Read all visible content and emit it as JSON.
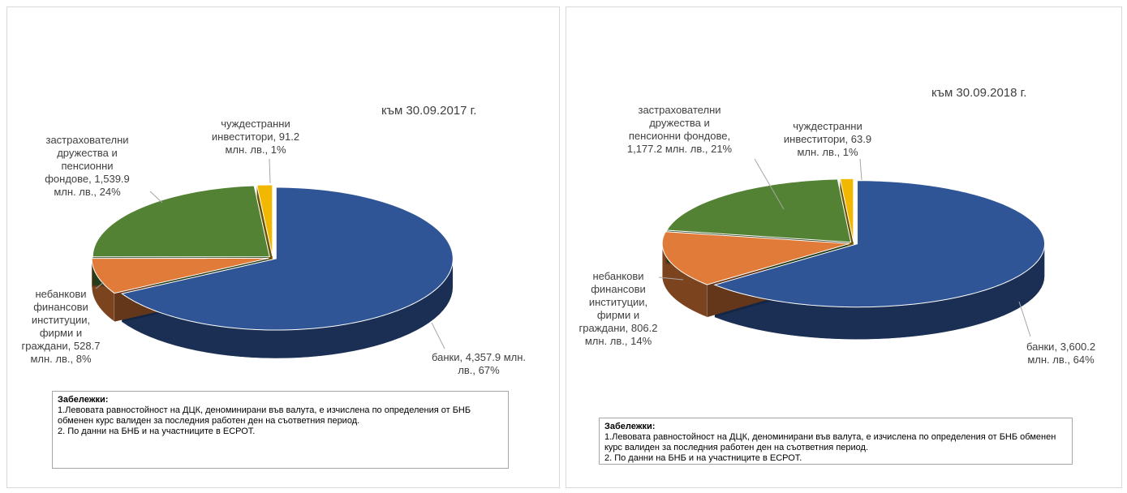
{
  "chart_data": [
    {
      "type": "pie",
      "title": "към 30.09.2017 г.",
      "categories": [
        "банки,",
        "небанкови финансови институции, фирми и граждани,",
        "застрахователни дружества и пенсионни фондове,",
        "чуждестранни инвеститори,"
      ],
      "values": [
        4357.9,
        528.7,
        1539.9,
        91.2
      ],
      "value_labels": [
        "4,357.9 млн. лв., 67%",
        "528.7 млн. лв., 8%",
        "1,539.9 млн. лв., 24%",
        "91.2 млн. лв., 1%"
      ],
      "colors": [
        "#2f5597",
        "#e07b39",
        "#548235",
        "#f2b800"
      ],
      "notes": {
        "title": "Забележки:",
        "lines": [
          "1.Левовата равностойност на ДЦК, деноминирани във валута, е изчислена по определения от БНБ обменен курс валиден за последния работен ден на съответния период.",
          "2. По данни на БНБ и на участниците в ЕСРОТ."
        ]
      }
    },
    {
      "type": "pie",
      "title": "към 30.09.2018 г.",
      "categories": [
        "банки,",
        "небанкови финансови институции, фирми и граждани,",
        "застрахователни дружества и пенсионни фондове,",
        "чуждестранни инвеститори,"
      ],
      "values": [
        3600.2,
        806.2,
        1177.2,
        63.9
      ],
      "value_labels": [
        "3,600.2 млн. лв., 64%",
        "806.2 млн. лв., 14%",
        "1,177.2 млн. лв., 21%",
        "63.9 млн. лв., 1%"
      ],
      "colors": [
        "#2f5597",
        "#e07b39",
        "#548235",
        "#f2b800"
      ],
      "notes": {
        "title": "Забележки:",
        "lines": [
          "1.Левовата равностойност на ДЦК, деноминирани във валута, е изчислена по определения от БНБ обменен курс валиден за последния работен ден на съответния период.",
          "2. По данни на БНБ и на участниците в ЕСРОТ."
        ]
      }
    }
  ]
}
